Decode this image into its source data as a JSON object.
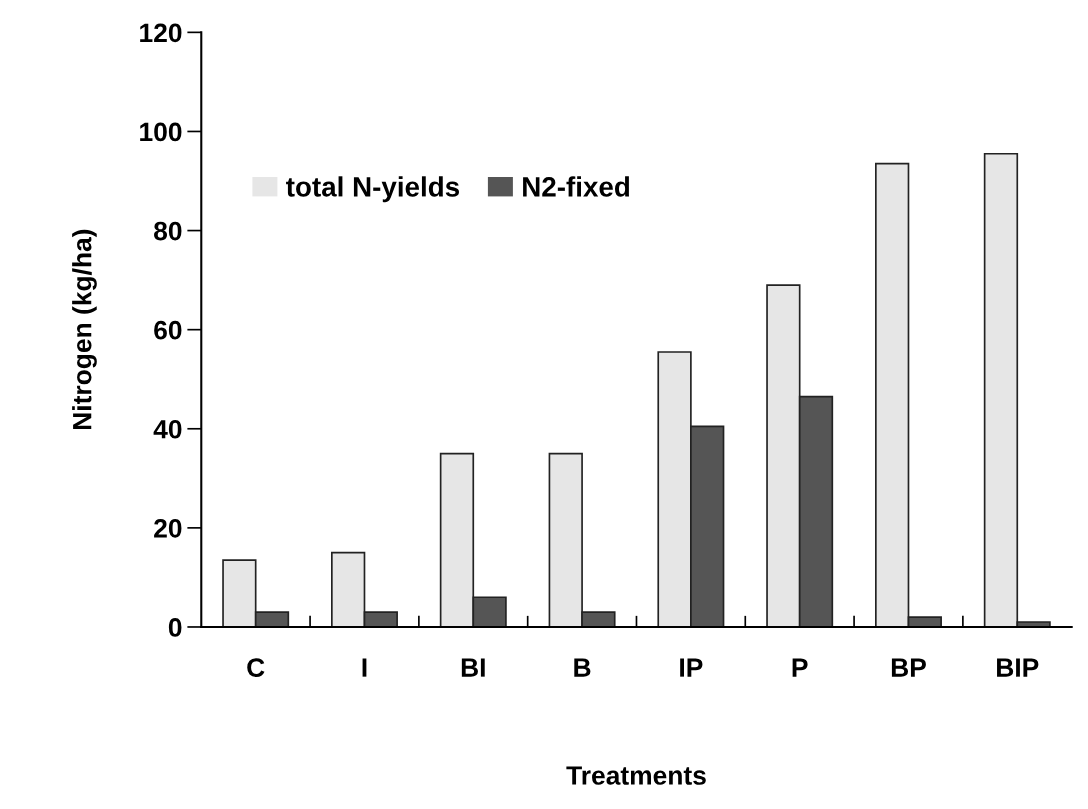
{
  "chart_data": {
    "type": "bar",
    "xlabel": "Treatments",
    "ylabel": "Nitrogen (kg/ha)",
    "categories": [
      "C",
      "I",
      "BI",
      "B",
      "IP",
      "P",
      "BP",
      "BIP"
    ],
    "series": [
      {
        "name": "total N-yields",
        "color": "#e6e6e6",
        "values": [
          13.5,
          15,
          35,
          35,
          55.5,
          69,
          93.5,
          95.5
        ]
      },
      {
        "name": "N2-fixed",
        "color": "#555555",
        "values": [
          3,
          3,
          6,
          3,
          40.5,
          46.5,
          2,
          1
        ]
      }
    ],
    "ylim": [
      0,
      120
    ],
    "yticks": [
      0,
      20,
      40,
      60,
      80,
      100,
      120
    ],
    "grid": false,
    "legend": "top left"
  }
}
